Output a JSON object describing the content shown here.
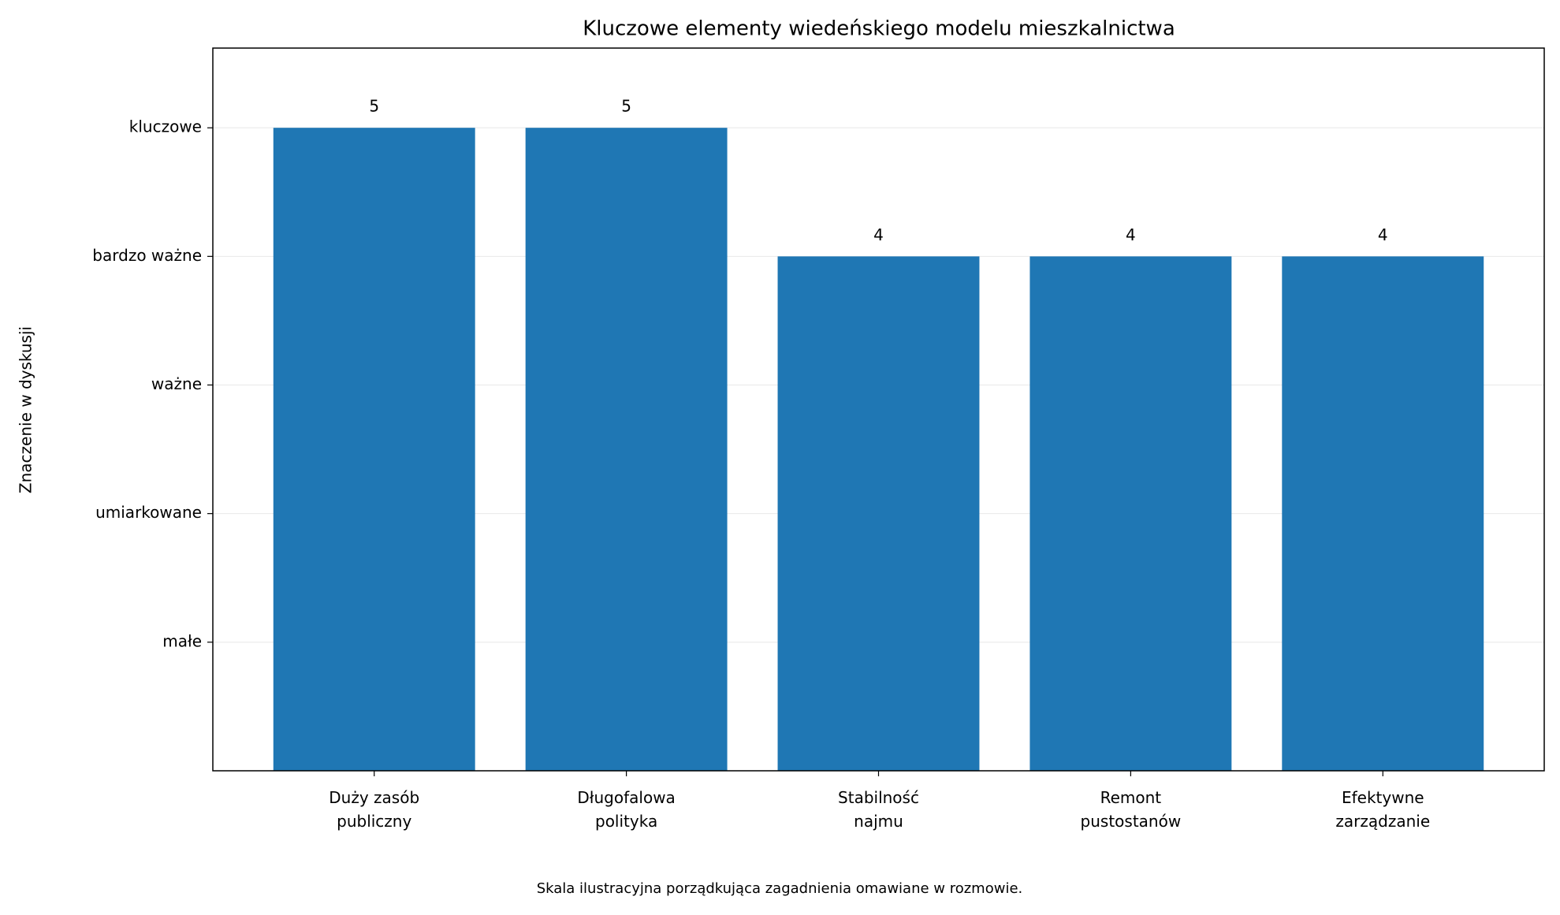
{
  "chart_data": {
    "type": "bar",
    "title": "Kluczowe elementy wiedeńskiego modelu mieszkalnictwa",
    "ylabel": "Znaczenie w dyskusji",
    "caption": "Skala ilustracyjna porządkująca zagadnienia omawiane w rozmowie.",
    "categories": [
      "Duży zasób\npubliczny",
      "Długofalowa\npolityka",
      "Stabilność\nnajmu",
      "Remont\npustostanów",
      "Efektywne\nzarządzanie"
    ],
    "values": [
      5,
      5,
      4,
      4,
      4
    ],
    "color": "#1f77b4",
    "ylim": [
      0,
      5.62
    ],
    "yticks": [
      {
        "value": 1,
        "label": "małe"
      },
      {
        "value": 2,
        "label": "umiarkowane"
      },
      {
        "value": 3,
        "label": "ważne"
      },
      {
        "value": 4,
        "label": "bardzo ważne"
      },
      {
        "value": 5,
        "label": "kluczowe"
      }
    ],
    "grid": true
  }
}
